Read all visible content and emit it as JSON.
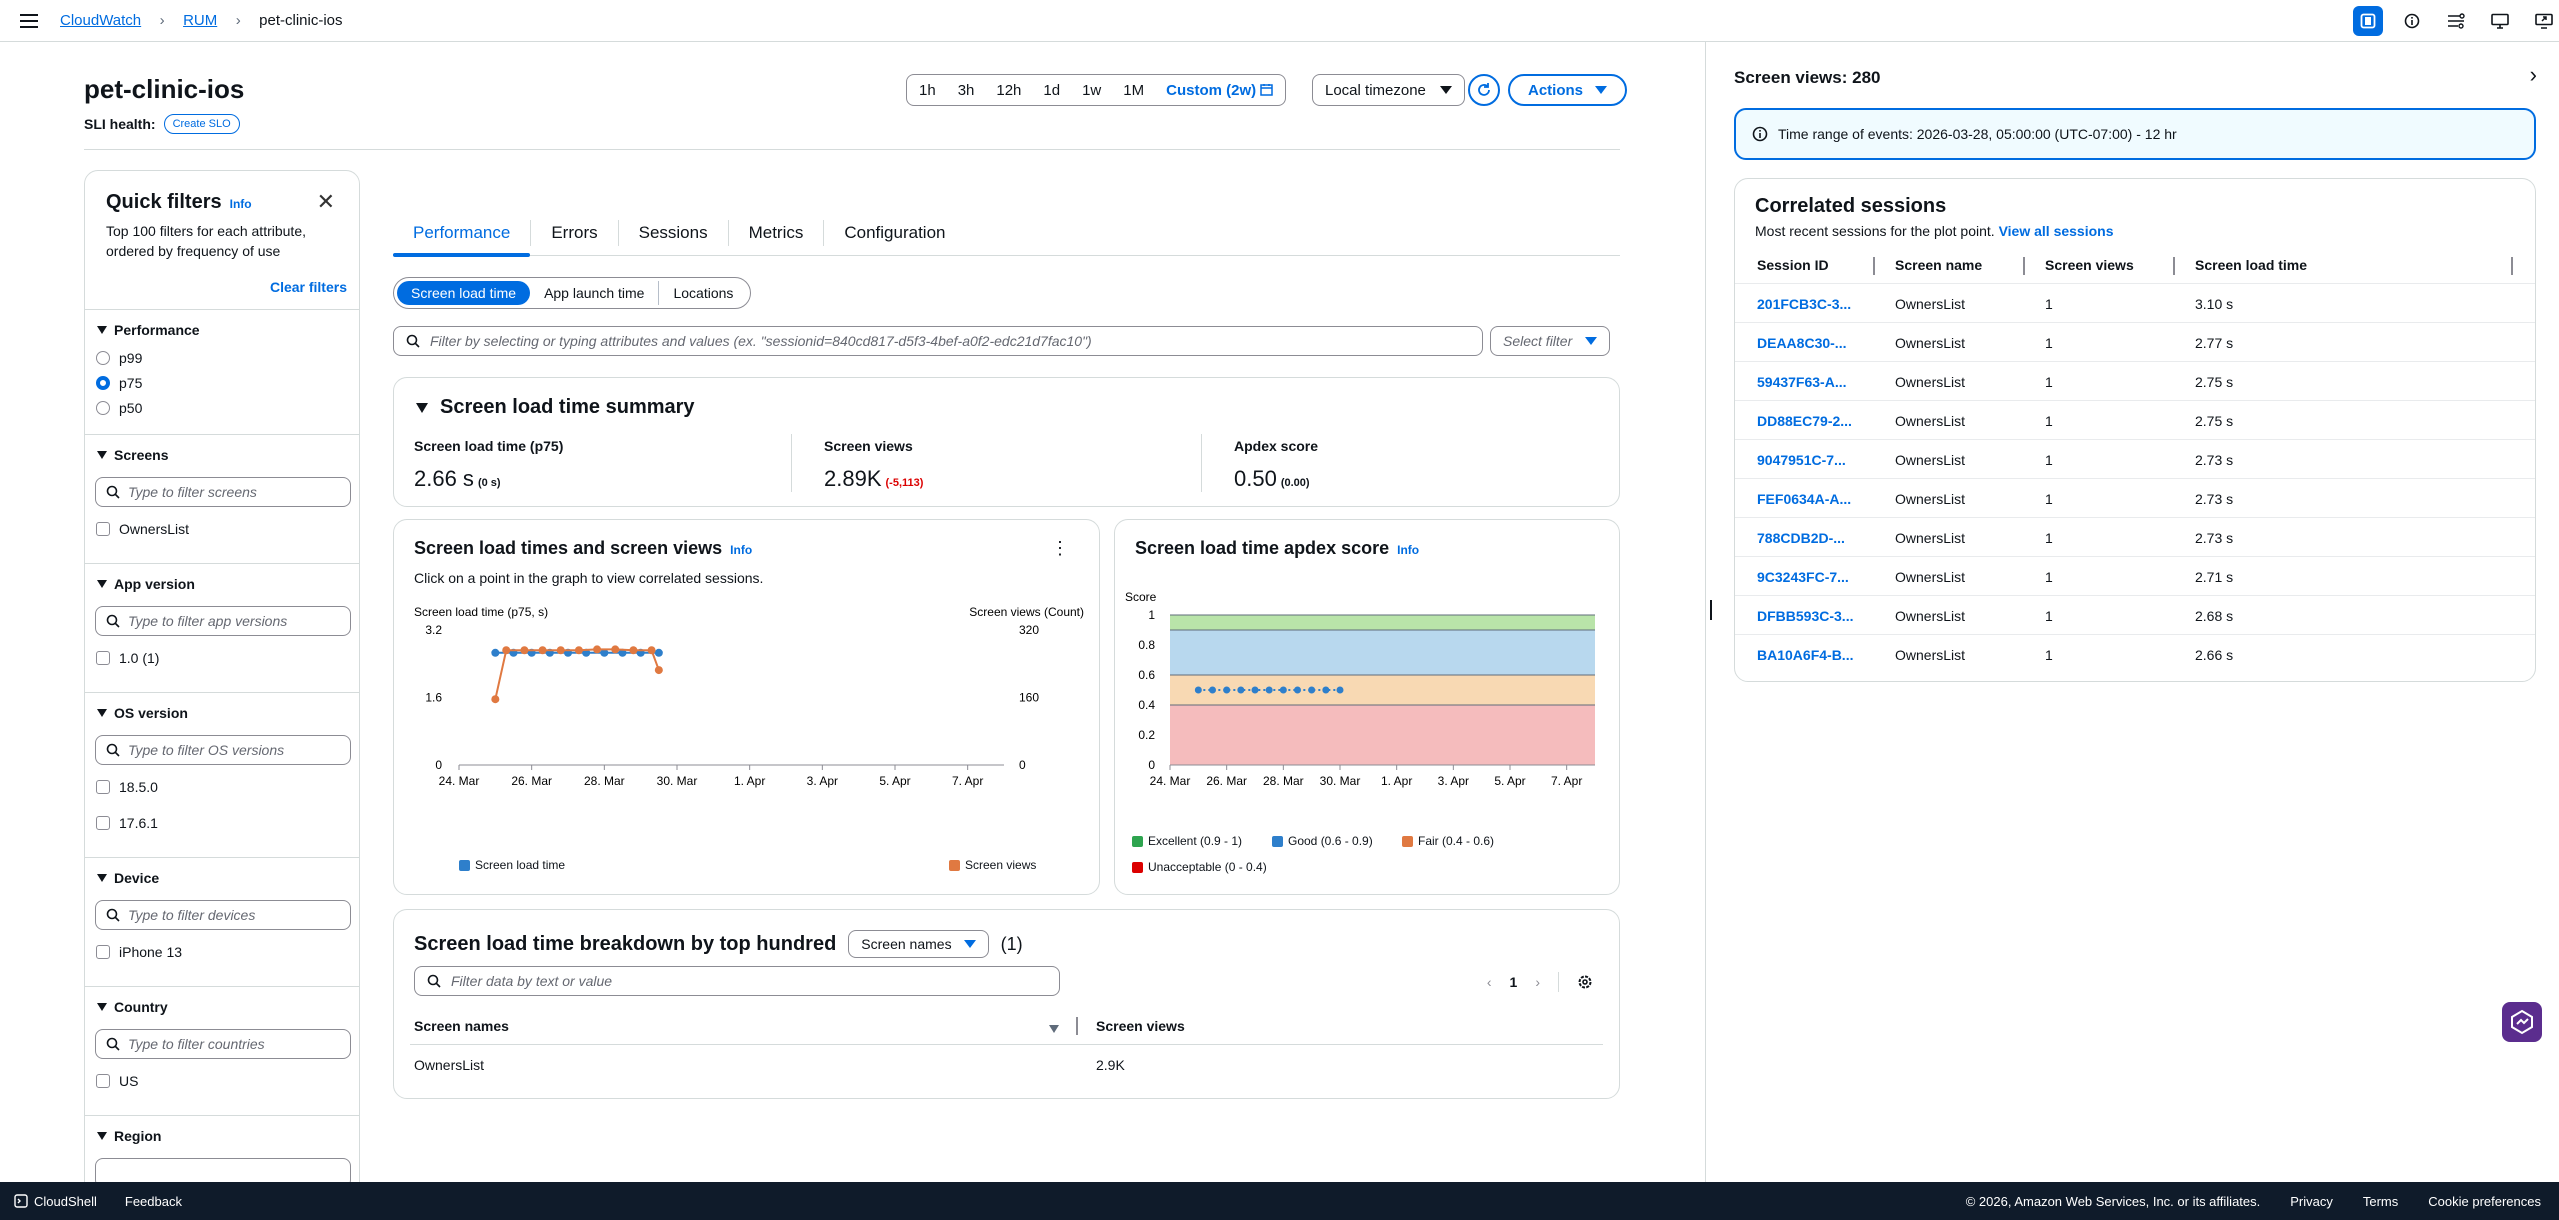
{
  "breadcrumb": {
    "items": [
      "CloudWatch",
      "RUM"
    ],
    "current": "pet-clinic-ios"
  },
  "page": {
    "title": "pet-clinic-ios",
    "sli_label": "SLI health:",
    "create_slo": "Create SLO"
  },
  "time_range": {
    "options": [
      "1h",
      "3h",
      "12h",
      "1d",
      "1w",
      "1M"
    ],
    "selected": "Custom (2w)"
  },
  "timezone": "Local timezone",
  "actions_label": "Actions",
  "quick_filters": {
    "title": "Quick filters",
    "info": "Info",
    "description": "Top 100 filters for each attribute, ordered by frequency of use",
    "clear": "Clear filters",
    "performance": {
      "label": "Performance",
      "options": [
        "p99",
        "p75",
        "p50"
      ],
      "selected": "p75"
    },
    "screens": {
      "label": "Screens",
      "placeholder": "Type to filter screens",
      "options": [
        "OwnersList"
      ]
    },
    "app_version": {
      "label": "App version",
      "placeholder": "Type to filter app versions",
      "options": [
        "1.0 (1)"
      ]
    },
    "os_version": {
      "label": "OS version",
      "placeholder": "Type to filter OS versions",
      "options": [
        "18.5.0",
        "17.6.1"
      ]
    },
    "device": {
      "label": "Device",
      "placeholder": "Type to filter devices",
      "options": [
        "iPhone 13"
      ]
    },
    "country": {
      "label": "Country",
      "placeholder": "Type to filter countries",
      "options": [
        "US"
      ]
    },
    "region": {
      "label": "Region"
    }
  },
  "tabs": [
    "Performance",
    "Errors",
    "Sessions",
    "Metrics",
    "Configuration"
  ],
  "segments": [
    "Screen load time",
    "App launch time",
    "Locations"
  ],
  "filter": {
    "placeholder": "Filter by selecting or typing attributes and values (ex. \"sessionid=840cd817-d5f3-4bef-a0f2-edc21d7fac10\")",
    "select": "Select filter"
  },
  "summary": {
    "title": "Screen load time summary",
    "kpis": [
      {
        "label": "Screen load time (p75)",
        "value": "2.66 s",
        "delta": "(0 s)"
      },
      {
        "label": "Screen views",
        "value": "2.89K",
        "delta": "(-5,113)"
      },
      {
        "label": "Apdex score",
        "value": "0.50",
        "delta": "(0.00)"
      }
    ]
  },
  "chart_data": [
    {
      "type": "line",
      "title": "Screen load times and screen views",
      "info": "Info",
      "subtitle": "Click on a point in the graph to view correlated sessions.",
      "ylabel": "Screen load time (p75, s)",
      "y2label": "Screen views (Count)",
      "x_ticks": [
        "24. Mar",
        "26. Mar",
        "28. Mar",
        "30. Mar",
        "1. Apr",
        "3. Apr",
        "5. Apr",
        "7. Apr"
      ],
      "y_ticks": [
        "0",
        "1.6",
        "3.2"
      ],
      "y2_ticks": [
        "0",
        "160",
        "320"
      ],
      "ylim": [
        0,
        3.2
      ],
      "y2lim": [
        0,
        320
      ],
      "xlim": [
        0,
        15
      ],
      "series": [
        {
          "name": "Screen load time",
          "color": "#2e7fcb",
          "axis": "left",
          "x": [
            1,
            1.5,
            2,
            2.5,
            3,
            3.5,
            4,
            4.5,
            5,
            5.5
          ],
          "values": [
            2.66,
            2.66,
            2.66,
            2.66,
            2.66,
            2.66,
            2.66,
            2.66,
            2.66,
            2.66
          ]
        },
        {
          "name": "Screen views",
          "color": "#e07941",
          "axis": "right",
          "x": [
            1,
            1.3,
            1.8,
            2.3,
            2.8,
            3.3,
            3.8,
            4.3,
            4.8,
            5.3,
            5.5
          ],
          "values": [
            156,
            272,
            272,
            272,
            272,
            272,
            274,
            274,
            272,
            272,
            225
          ]
        }
      ]
    },
    {
      "type": "line",
      "title": "Screen load time apdex score",
      "info": "Info",
      "ylabel": "Score",
      "x_ticks": [
        "24. Mar",
        "26. Mar",
        "28. Mar",
        "30. Mar",
        "1. Apr",
        "3. Apr",
        "5. Apr",
        "7. Apr"
      ],
      "y_ticks": [
        "0",
        "0.2",
        "0.4",
        "0.6",
        "0.8",
        "1"
      ],
      "ylim": [
        0,
        1
      ],
      "xlim": [
        0,
        15
      ],
      "bands": [
        {
          "name": "Excellent (0.9 - 1)",
          "from": 0.9,
          "to": 1,
          "color": "#b9e4a9",
          "legend_color": "#2ea44f"
        },
        {
          "name": "Good (0.6 - 0.9)",
          "from": 0.6,
          "to": 0.9,
          "color": "#b8d8ee",
          "legend_color": "#2e7fcb"
        },
        {
          "name": "Fair (0.4 - 0.6)",
          "from": 0.4,
          "to": 0.6,
          "color": "#f8d9b3",
          "legend_color": "#e07941"
        },
        {
          "name": "Unacceptable (0 - 0.4)",
          "from": 0,
          "to": 0.4,
          "color": "#f5bcbd",
          "legend_color": "#db0000"
        }
      ],
      "series": [
        {
          "color": "#2e7fcb",
          "x": [
            1,
            1.5,
            2,
            2.5,
            3,
            3.5,
            4,
            4.5,
            5,
            5.5,
            6
          ],
          "values": [
            0.5,
            0.5,
            0.5,
            0.5,
            0.5,
            0.5,
            0.5,
            0.5,
            0.5,
            0.5,
            0.5
          ]
        }
      ]
    }
  ],
  "breakdown": {
    "title": "Screen load time breakdown by top hundred",
    "group_by": "Screen names",
    "count": "(1)",
    "placeholder": "Filter data by text or value",
    "page": "1",
    "columns": [
      "Screen names",
      "Screen views"
    ],
    "rows": [
      [
        "OwnersList",
        "2.9K"
      ]
    ]
  },
  "right_panel": {
    "title": "Screen views: 280",
    "alert": "Time range of events: 2026-03-28, 05:00:00 (UTC-07:00) - 12 hr",
    "sessions_title": "Correlated sessions",
    "sessions_sub": "Most recent sessions for the plot point.",
    "view_all": "View all sessions",
    "columns": [
      "Session ID",
      "Screen name",
      "Screen views",
      "Screen load time"
    ],
    "rows": [
      [
        "201FCB3C-3...",
        "OwnersList",
        "1",
        "3.10 s"
      ],
      [
        "DEAA8C30-...",
        "OwnersList",
        "1",
        "2.77 s"
      ],
      [
        "59437F63-A...",
        "OwnersList",
        "1",
        "2.75 s"
      ],
      [
        "DD88EC79-2...",
        "OwnersList",
        "1",
        "2.75 s"
      ],
      [
        "9047951C-7...",
        "OwnersList",
        "1",
        "2.73 s"
      ],
      [
        "FEF0634A-A...",
        "OwnersList",
        "1",
        "2.73 s"
      ],
      [
        "788CDB2D-...",
        "OwnersList",
        "1",
        "2.73 s"
      ],
      [
        "9C3243FC-7...",
        "OwnersList",
        "1",
        "2.71 s"
      ],
      [
        "DFBB593C-3...",
        "OwnersList",
        "1",
        "2.68 s"
      ],
      [
        "BA10A6F4-B...",
        "OwnersList",
        "1",
        "2.66 s"
      ]
    ]
  },
  "footer": {
    "cloudshell": "CloudShell",
    "feedback": "Feedback",
    "copyright": "© 2026, Amazon Web Services, Inc. or its affiliates.",
    "links": [
      "Privacy",
      "Terms",
      "Cookie preferences"
    ]
  }
}
